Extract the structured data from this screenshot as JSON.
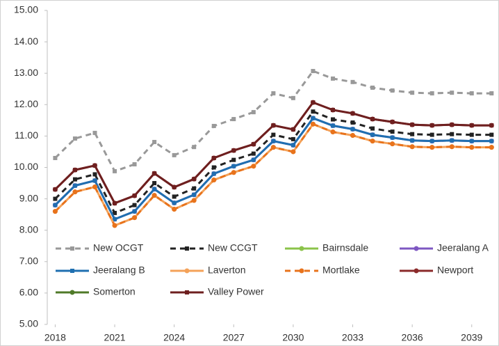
{
  "chart_data": {
    "type": "line",
    "x": [
      2018,
      2019,
      2020,
      2021,
      2022,
      2023,
      2024,
      2025,
      2026,
      2027,
      2028,
      2029,
      2030,
      2031,
      2032,
      2033,
      2034,
      2035,
      2036,
      2037,
      2038,
      2039,
      2040
    ],
    "xlim": [
      2017.6,
      2040.2
    ],
    "xticks": [
      2018,
      2021,
      2024,
      2027,
      2030,
      2033,
      2036,
      2039
    ],
    "ylim": [
      5,
      15
    ],
    "yticks": [
      {
        "value": 5,
        "label": "5.00"
      },
      {
        "value": 6,
        "label": "6.00"
      },
      {
        "value": 7,
        "label": "7.00"
      },
      {
        "value": 8,
        "label": "8.00"
      },
      {
        "value": 9,
        "label": "9.00"
      },
      {
        "value": 10,
        "label": "10.00"
      },
      {
        "value": 11,
        "label": "11.00"
      },
      {
        "value": 12,
        "label": "12.00"
      },
      {
        "value": 13,
        "label": "13.00"
      },
      {
        "value": 14,
        "label": "14.00"
      },
      {
        "value": 15,
        "label": "15.00"
      }
    ],
    "grid": false,
    "legend": "lower center",
    "series": [
      {
        "name": "New OCGT",
        "color": "#999999",
        "dash": true,
        "marker": "square",
        "values": [
          10.3,
          10.92,
          11.1,
          9.88,
          10.1,
          10.81,
          10.39,
          10.65,
          11.32,
          11.54,
          11.76,
          12.36,
          12.21,
          13.07,
          12.83,
          12.72,
          12.54,
          12.45,
          12.38,
          12.36,
          12.38,
          12.36,
          12.36
        ]
      },
      {
        "name": "New CCGT",
        "color": "#222222",
        "dash": true,
        "marker": "square",
        "values": [
          9.0,
          9.62,
          9.78,
          8.55,
          8.8,
          9.5,
          9.07,
          9.33,
          10.0,
          10.24,
          10.44,
          11.04,
          10.9,
          11.78,
          11.53,
          11.43,
          11.24,
          11.14,
          11.06,
          11.04,
          11.06,
          11.04,
          11.04
        ]
      },
      {
        "name": "Bairnsdale",
        "color": "#8bc34a",
        "dash": false,
        "marker": "circle",
        "values": [
          null,
          null,
          null,
          null,
          null,
          null,
          null,
          null,
          null,
          null,
          null,
          null,
          null,
          null,
          null,
          null,
          null,
          null,
          null,
          null,
          null,
          null,
          null
        ]
      },
      {
        "name": "Jeeralang A",
        "color": "#7e57c2",
        "dash": false,
        "marker": "circle",
        "values": [
          8.8,
          9.42,
          9.58,
          8.35,
          8.6,
          9.31,
          8.87,
          9.13,
          9.8,
          10.04,
          10.24,
          10.84,
          10.71,
          11.57,
          11.33,
          11.22,
          11.04,
          10.95,
          10.86,
          10.84,
          10.86,
          10.84,
          10.84
        ]
      },
      {
        "name": "Jeeralang B",
        "color": "#1f6fb0",
        "dash": false,
        "marker": "square",
        "values": [
          8.8,
          9.42,
          9.58,
          8.35,
          8.6,
          9.31,
          8.87,
          9.13,
          9.8,
          10.04,
          10.24,
          10.84,
          10.71,
          11.57,
          11.33,
          11.22,
          11.04,
          10.95,
          10.86,
          10.84,
          10.86,
          10.84,
          10.84
        ]
      },
      {
        "name": "Laverton",
        "color": "#f4a259",
        "dash": false,
        "marker": "circle",
        "values": [
          8.6,
          9.22,
          9.38,
          8.15,
          8.4,
          9.11,
          8.67,
          8.95,
          9.6,
          9.84,
          10.04,
          10.64,
          10.5,
          11.38,
          11.13,
          11.02,
          10.84,
          10.75,
          10.66,
          10.64,
          10.66,
          10.64,
          10.64
        ]
      },
      {
        "name": "Mortlake",
        "color": "#e8731c",
        "dash": true,
        "marker": "circle",
        "values": [
          8.6,
          9.22,
          9.38,
          8.15,
          8.4,
          9.11,
          8.67,
          8.95,
          9.6,
          9.84,
          10.04,
          10.64,
          10.5,
          11.38,
          11.13,
          11.02,
          10.84,
          10.75,
          10.66,
          10.64,
          10.66,
          10.64,
          10.64
        ]
      },
      {
        "name": "Newport",
        "color": "#8b2a2a",
        "dash": false,
        "marker": "circle",
        "values": [
          9.3,
          9.92,
          10.06,
          8.86,
          9.1,
          9.81,
          9.37,
          9.63,
          10.3,
          10.54,
          10.74,
          11.34,
          11.21,
          12.07,
          11.83,
          11.72,
          11.54,
          11.45,
          11.36,
          11.34,
          11.36,
          11.34,
          11.34
        ]
      },
      {
        "name": "Somerton",
        "color": "#4f7a28",
        "dash": false,
        "marker": "circle",
        "values": [
          null,
          null,
          null,
          null,
          null,
          null,
          null,
          null,
          null,
          null,
          null,
          null,
          null,
          null,
          null,
          null,
          null,
          null,
          null,
          null,
          null,
          null,
          null
        ]
      },
      {
        "name": "Valley Power",
        "color": "#6e1f1f",
        "dash": false,
        "marker": "square",
        "values": [
          9.3,
          9.92,
          10.06,
          8.86,
          9.1,
          9.81,
          9.37,
          9.63,
          10.3,
          10.54,
          10.74,
          11.34,
          11.21,
          12.07,
          11.83,
          11.72,
          11.54,
          11.45,
          11.36,
          11.34,
          11.36,
          11.34,
          11.34
        ]
      }
    ]
  }
}
